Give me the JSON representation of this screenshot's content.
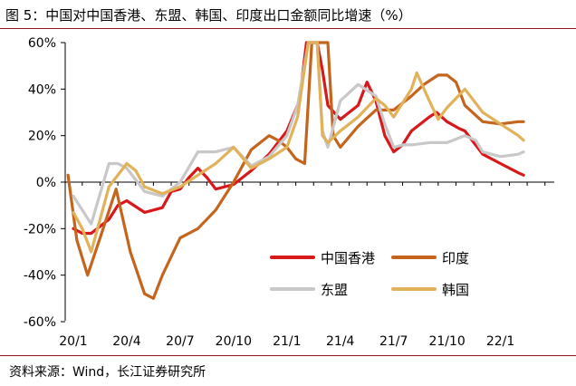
{
  "title": "图 5：中国对中国香港、东盟、韩国、印度出口金额同比增速（%）",
  "source": "资料来源：Wind，长江证券研究所",
  "chart_data": {
    "type": "line",
    "title": "图 5：中国对中国香港、东盟、韩国、印度出口金额同比增速（%）",
    "xlabel": "",
    "ylabel": "",
    "ylim": [
      -60,
      60
    ],
    "yticks": [
      -60,
      -40,
      -20,
      0,
      20,
      40,
      60
    ],
    "ytick_labels": [
      "-60%",
      "-40%",
      "-20%",
      "0%",
      "20%",
      "40%",
      "60%"
    ],
    "xlim": [
      0,
      26
    ],
    "xticks": [
      0,
      3,
      6,
      9,
      12,
      15,
      18,
      21,
      24
    ],
    "xtick_labels": [
      "20/1",
      "20/4",
      "20/7",
      "20/10",
      "21/1",
      "21/4",
      "21/7",
      "21/10",
      "22/1"
    ],
    "grid": false,
    "legend_position": "lower-right",
    "series": [
      {
        "name": "中国香港",
        "color": "#d7191c",
        "width": 3.2,
        "points": [
          [
            0,
            -20
          ],
          [
            0.5,
            -22
          ],
          [
            1,
            -22
          ],
          [
            2,
            -16
          ],
          [
            2.5,
            -10
          ],
          [
            3,
            -8
          ],
          [
            4,
            -13
          ],
          [
            5,
            -11
          ],
          [
            5.5,
            -4
          ],
          [
            6,
            -3
          ],
          [
            6.5,
            2
          ],
          [
            7,
            6
          ],
          [
            7.5,
            2
          ],
          [
            8,
            -3
          ],
          [
            9,
            -1
          ],
          [
            10,
            5
          ],
          [
            11,
            12
          ],
          [
            12,
            22
          ],
          [
            12.7,
            35
          ],
          [
            13.1,
            60
          ],
          [
            13.7,
            60
          ],
          [
            14,
            48
          ],
          [
            14.3,
            33
          ],
          [
            15,
            27
          ],
          [
            16,
            33
          ],
          [
            16.5,
            43
          ],
          [
            17,
            35
          ],
          [
            17.5,
            20
          ],
          [
            18,
            13
          ],
          [
            18.5,
            16
          ],
          [
            19,
            22
          ],
          [
            20,
            28
          ],
          [
            20.4,
            30
          ],
          [
            21,
            26
          ],
          [
            21.7,
            23
          ],
          [
            22,
            22
          ],
          [
            23,
            12
          ],
          [
            24,
            8
          ],
          [
            25,
            4
          ],
          [
            25.3,
            3
          ]
        ]
      },
      {
        "name": "印度",
        "color": "#c5651d",
        "width": 3.2,
        "points": [
          [
            -0.3,
            3
          ],
          [
            0.2,
            -25
          ],
          [
            0.8,
            -40
          ],
          [
            1.5,
            -24
          ],
          [
            2.4,
            -3
          ],
          [
            3.2,
            -30
          ],
          [
            4,
            -48
          ],
          [
            4.5,
            -50
          ],
          [
            5,
            -40
          ],
          [
            6,
            -24
          ],
          [
            7,
            -20
          ],
          [
            8,
            -12
          ],
          [
            9,
            0
          ],
          [
            10,
            14
          ],
          [
            11,
            20
          ],
          [
            11.5,
            18
          ],
          [
            12,
            15
          ],
          [
            12.5,
            10
          ],
          [
            13,
            8
          ],
          [
            13.4,
            60
          ],
          [
            14.3,
            60
          ],
          [
            14.6,
            20
          ],
          [
            15,
            15
          ],
          [
            16,
            24
          ],
          [
            17,
            31
          ],
          [
            18,
            31
          ],
          [
            19,
            37
          ],
          [
            19.7,
            42
          ],
          [
            20.5,
            46
          ],
          [
            21,
            46
          ],
          [
            21.5,
            43
          ],
          [
            22,
            33
          ],
          [
            23,
            26
          ],
          [
            24,
            25
          ],
          [
            25,
            26
          ],
          [
            25.3,
            26
          ]
        ]
      },
      {
        "name": "东盟",
        "color": "#c8c8c8",
        "width": 3.2,
        "points": [
          [
            0,
            -6
          ],
          [
            1,
            -18
          ],
          [
            2,
            8
          ],
          [
            2.5,
            8
          ],
          [
            3,
            6
          ],
          [
            3.5,
            1
          ],
          [
            4,
            -4
          ],
          [
            5,
            -6
          ],
          [
            6,
            0
          ],
          [
            7,
            13
          ],
          [
            8,
            13
          ],
          [
            9,
            15
          ],
          [
            10,
            7
          ],
          [
            11,
            11
          ],
          [
            12,
            20
          ],
          [
            12.6,
            33
          ],
          [
            13.2,
            60
          ],
          [
            13.7,
            60
          ],
          [
            14,
            22
          ],
          [
            14.3,
            15
          ],
          [
            15,
            35
          ],
          [
            16,
            42
          ],
          [
            17,
            37
          ],
          [
            17.5,
            25
          ],
          [
            18,
            15
          ],
          [
            18.5,
            16
          ],
          [
            19,
            16
          ],
          [
            20,
            17
          ],
          [
            21,
            17
          ],
          [
            22,
            20
          ],
          [
            22.6,
            18
          ],
          [
            23,
            13
          ],
          [
            24,
            11
          ],
          [
            25,
            12
          ],
          [
            25.3,
            13
          ]
        ]
      },
      {
        "name": "韩国",
        "color": "#e1b25a",
        "width": 3.2,
        "points": [
          [
            0,
            -13
          ],
          [
            0.5,
            -20
          ],
          [
            1,
            -30
          ],
          [
            2,
            -2
          ],
          [
            3,
            8
          ],
          [
            3.5,
            5
          ],
          [
            4,
            -2
          ],
          [
            5,
            -5
          ],
          [
            6,
            -2
          ],
          [
            7,
            3
          ],
          [
            8,
            8
          ],
          [
            9,
            15
          ],
          [
            10,
            6
          ],
          [
            11,
            10
          ],
          [
            12,
            15
          ],
          [
            12.6,
            28
          ],
          [
            13.2,
            60
          ],
          [
            13.7,
            60
          ],
          [
            14,
            20
          ],
          [
            14.3,
            17
          ],
          [
            15,
            22
          ],
          [
            16,
            28
          ],
          [
            17,
            36
          ],
          [
            17.5,
            33
          ],
          [
            18,
            28
          ],
          [
            19,
            40
          ],
          [
            19.3,
            47
          ],
          [
            20,
            35
          ],
          [
            20.5,
            27
          ],
          [
            21,
            32
          ],
          [
            22,
            40
          ],
          [
            23,
            30
          ],
          [
            24,
            25
          ],
          [
            25,
            20
          ],
          [
            25.3,
            18
          ]
        ]
      }
    ]
  }
}
